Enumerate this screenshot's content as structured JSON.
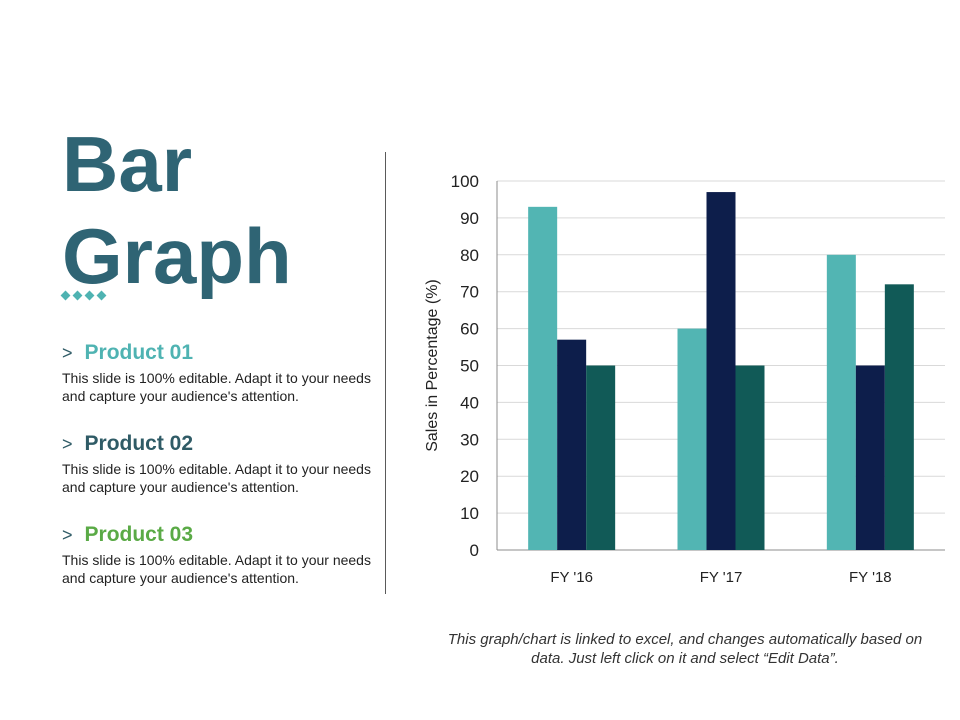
{
  "slide": {
    "title_line1": "Bar",
    "title_line2": "Graph",
    "footnote": "This graph/chart is linked to excel, and changes automatically based on data. Just left click on it and select “Edit Data”."
  },
  "products": [
    {
      "marker": ">",
      "name": "Product 01",
      "description": "This slide is 100% editable. Adapt it to your needs and capture your audience's attention.",
      "color": "#4fb3b2"
    },
    {
      "marker": ">",
      "name": "Product 02",
      "description": "This slide is 100% editable. Adapt it to your needs and capture your audience's attention.",
      "color": "#2f5b66"
    },
    {
      "marker": ">",
      "name": "Product 03",
      "description": "This slide is 100% editable. Adapt it to your needs and capture your audience's attention.",
      "color": "#5aaa46"
    }
  ],
  "chart_data": {
    "type": "bar",
    "categories": [
      "FY '16",
      "FY '17",
      "FY '18"
    ],
    "series": [
      {
        "values": [
          93,
          60,
          80
        ],
        "color": "#52b5b3"
      },
      {
        "values": [
          57,
          97,
          50
        ],
        "color": "#0d1e4b"
      },
      {
        "values": [
          50,
          50,
          72
        ],
        "color": "#115a57"
      }
    ],
    "ylabel": "Sales in Percentage (%)",
    "ylim": [
      0,
      100
    ],
    "yticks": [
      0,
      10,
      20,
      30,
      40,
      50,
      60,
      70,
      80,
      90,
      100
    ],
    "grid": true
  }
}
